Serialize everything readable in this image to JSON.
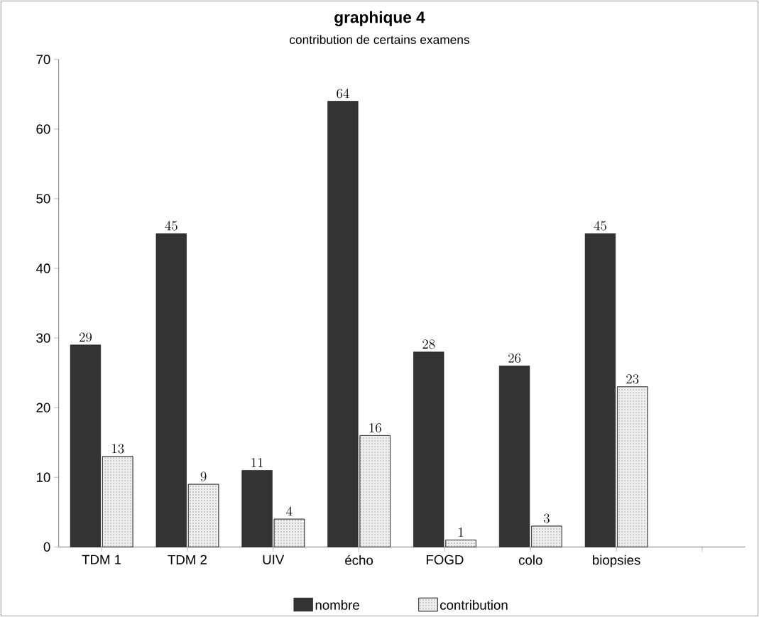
{
  "chart_data": {
    "type": "bar",
    "title": "graphique 4",
    "subtitle": "contribution de certains examens",
    "categories": [
      "TDM 1",
      "TDM 2",
      "UIV",
      "écho",
      "FOGD",
      "colo",
      "biopsies",
      null
    ],
    "series": [
      {
        "name": "nombre",
        "color": "#333333",
        "values": [
          29,
          45,
          11,
          64,
          28,
          26,
          45,
          null
        ]
      },
      {
        "name": "contribution",
        "color": "#eeeeee",
        "values": [
          13,
          9,
          4,
          16,
          1,
          3,
          23,
          null
        ]
      }
    ],
    "ylim": [
      0,
      70
    ],
    "yticks": [
      0,
      10,
      20,
      30,
      40,
      50,
      60,
      70
    ],
    "data_labels": true,
    "legend": "bottom",
    "grid": false
  }
}
